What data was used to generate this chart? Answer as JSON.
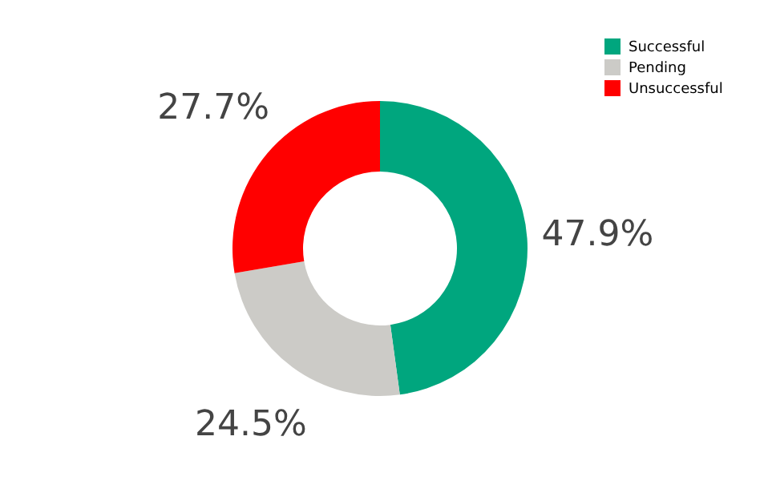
{
  "chart_data": {
    "type": "donut",
    "categories": [
      "Successful",
      "Pending",
      "Unsuccessful"
    ],
    "values": [
      47.9,
      24.5,
      27.7
    ],
    "colors": [
      "#00a67e",
      "#cccbc7",
      "#ff0000"
    ],
    "value_labels": [
      "47.9%",
      "24.5%",
      "27.7%"
    ],
    "legend": "top right"
  }
}
